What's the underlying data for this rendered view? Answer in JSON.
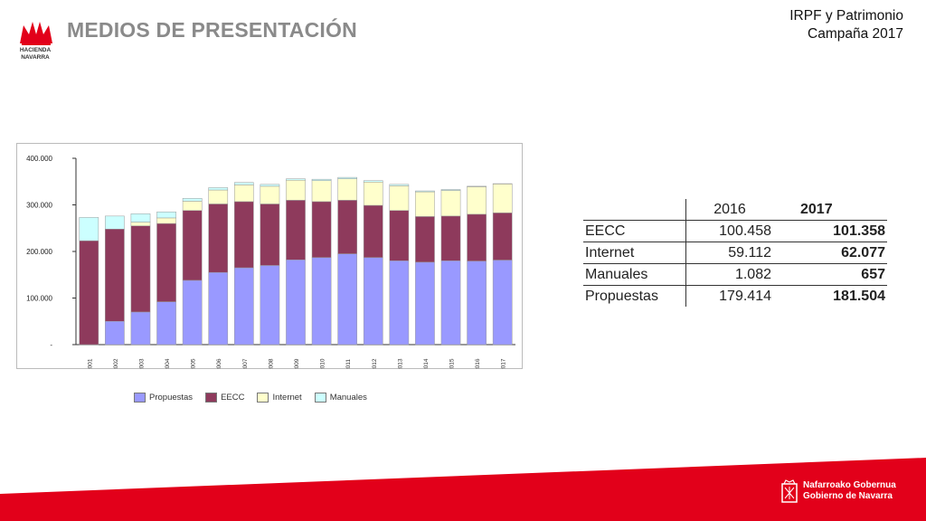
{
  "header": {
    "logo_text": "HACIENDA NAVARRA",
    "title": "MEDIOS DE PRESENTACIÓN",
    "top_right_line1": "IRPF y Patrimonio",
    "top_right_line2": "Campaña 2017"
  },
  "footer": {
    "gob_line1": "Nafarroako Gobernua",
    "gob_line2": "Gobierno de Navarra",
    "band_color": "#e2001a"
  },
  "table": {
    "headers": [
      "",
      "2016",
      "2017"
    ],
    "rows": [
      {
        "label": "EECC",
        "v2016": "100.458",
        "v2017": "101.358"
      },
      {
        "label": "Internet",
        "v2016": "59.112",
        "v2017": "62.077"
      },
      {
        "label": "Manuales",
        "v2016": "1.082",
        "v2017": "657"
      },
      {
        "label": "Propuestas",
        "v2016": "179.414",
        "v2017": "181.504"
      }
    ]
  },
  "chart_data": {
    "type": "bar",
    "stacked": true,
    "categories": [
      "2001",
      "2002",
      "2003",
      "2004",
      "2005",
      "2006",
      "2007",
      "2008",
      "2009",
      "2010",
      "2011",
      "2012",
      "2013",
      "2014",
      "2015",
      "2016",
      "2017"
    ],
    "y_ticks": [
      "400.000",
      "300.000",
      "200.000",
      "100.000",
      "-"
    ],
    "ylim": [
      0,
      400000
    ],
    "grid": false,
    "legend_position": "bottom",
    "series": [
      {
        "name": "Propuestas",
        "color": "#9999ff",
        "values": [
          0,
          50000,
          70000,
          92000,
          138000,
          155000,
          165000,
          170000,
          182000,
          187000,
          195000,
          187000,
          180000,
          177000,
          180000,
          179414,
          181504
        ]
      },
      {
        "name": "EECC",
        "color": "#8e3a5c",
        "values": [
          223000,
          198000,
          185000,
          168000,
          150000,
          147000,
          142000,
          132000,
          128000,
          120000,
          115000,
          112000,
          108000,
          98000,
          96000,
          100458,
          101358
        ]
      },
      {
        "name": "Internet",
        "color": "#ffffcc",
        "values": [
          0,
          0,
          8000,
          12000,
          20000,
          30000,
          36000,
          38000,
          43000,
          45000,
          46000,
          50000,
          53000,
          53000,
          55000,
          59112,
          62077
        ]
      },
      {
        "name": "Manuales",
        "color": "#ccffff",
        "values": [
          50000,
          28000,
          18000,
          13000,
          6000,
          5000,
          5000,
          4000,
          3000,
          3000,
          3000,
          3000,
          3000,
          2000,
          2000,
          1082,
          657
        ]
      }
    ]
  }
}
